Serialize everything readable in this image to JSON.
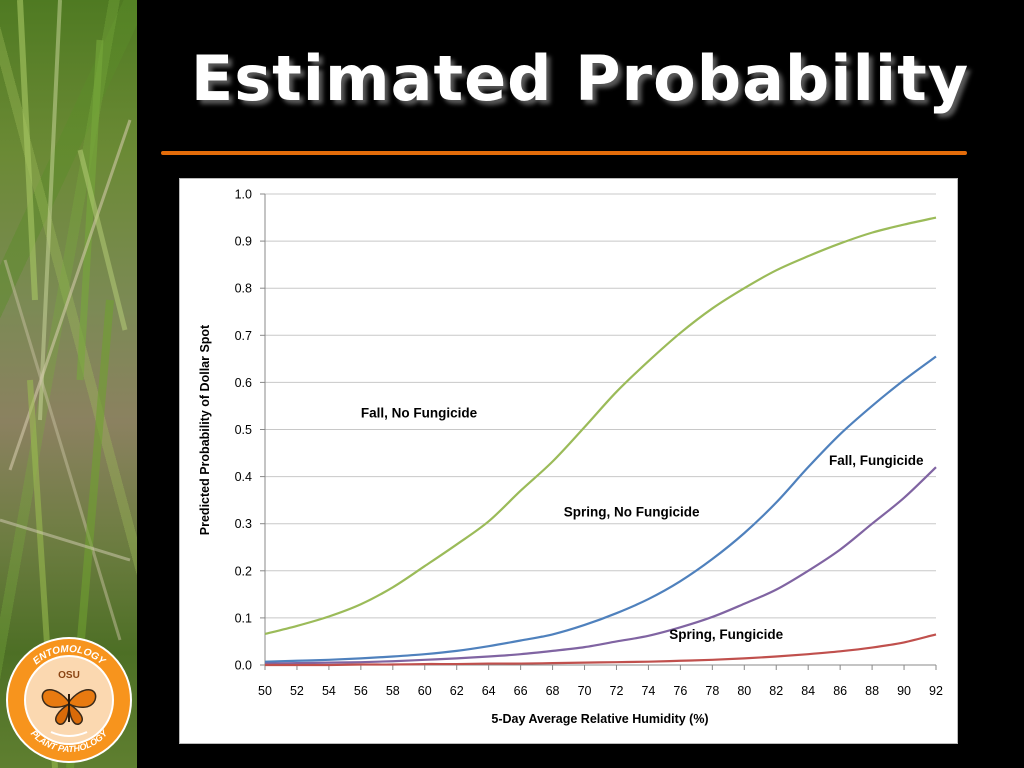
{
  "slide": {
    "title": "Estimated Probability",
    "accent_color": "#e36c0a"
  },
  "logo": {
    "icon": "department-logo-icon",
    "top_text": "ENTOMOLOGY",
    "bottom_text": "PLANT PATHOLOGY",
    "center_text": "OSU"
  },
  "background": {
    "icon": "grass-photo"
  },
  "chart_data": {
    "type": "line",
    "xlabel": "5-Day Average Relative Humidity (%)",
    "ylabel": "Predicted Probability of Dollar Spot",
    "xlim": [
      50,
      92
    ],
    "ylim": [
      0,
      1.0
    ],
    "x_ticks": [
      "50",
      "52",
      "54",
      "56",
      "58",
      "60",
      "62",
      "64",
      "66",
      "68",
      "70",
      "72",
      "74",
      "76",
      "78",
      "80",
      "82",
      "84",
      "86",
      "88",
      "90",
      "92"
    ],
    "y_ticks": [
      "0.0",
      "0.1",
      "0.2",
      "0.3",
      "0.4",
      "0.5",
      "0.6",
      "0.7",
      "0.8",
      "0.9",
      "1.0"
    ],
    "grid": "horizontal",
    "legend": "inline labels",
    "x": [
      50,
      52,
      54,
      56,
      58,
      60,
      62,
      64,
      66,
      68,
      70,
      72,
      74,
      76,
      78,
      80,
      82,
      84,
      86,
      88,
      90,
      92
    ],
    "series": [
      {
        "name": "Fall, No Fungicide",
        "color": "#9bbb59",
        "values": [
          0.066,
          0.083,
          0.103,
          0.129,
          0.165,
          0.21,
          0.256,
          0.305,
          0.37,
          0.432,
          0.505,
          0.58,
          0.645,
          0.705,
          0.757,
          0.8,
          0.838,
          0.868,
          0.895,
          0.918,
          0.935,
          0.95
        ]
      },
      {
        "name": "Fall, Fungicide",
        "color": "#4f81bd",
        "values": [
          0.007,
          0.009,
          0.011,
          0.014,
          0.018,
          0.023,
          0.03,
          0.04,
          0.052,
          0.065,
          0.085,
          0.11,
          0.14,
          0.178,
          0.225,
          0.28,
          0.345,
          0.42,
          0.49,
          0.55,
          0.605,
          0.655
        ]
      },
      {
        "name": "Spring, No Fungicide",
        "color": "#8064a2",
        "values": [
          0.003,
          0.004,
          0.005,
          0.006,
          0.008,
          0.011,
          0.014,
          0.018,
          0.023,
          0.03,
          0.038,
          0.05,
          0.062,
          0.08,
          0.102,
          0.13,
          0.16,
          0.2,
          0.245,
          0.3,
          0.355,
          0.42
        ]
      },
      {
        "name": "Spring, Fungicide",
        "color": "#c0504d",
        "values": [
          0.0,
          0.0,
          0.0,
          0.001,
          0.001,
          0.002,
          0.002,
          0.003,
          0.003,
          0.004,
          0.005,
          0.006,
          0.007,
          0.009,
          0.011,
          0.014,
          0.018,
          0.023,
          0.029,
          0.037,
          0.048,
          0.065
        ]
      }
    ]
  }
}
